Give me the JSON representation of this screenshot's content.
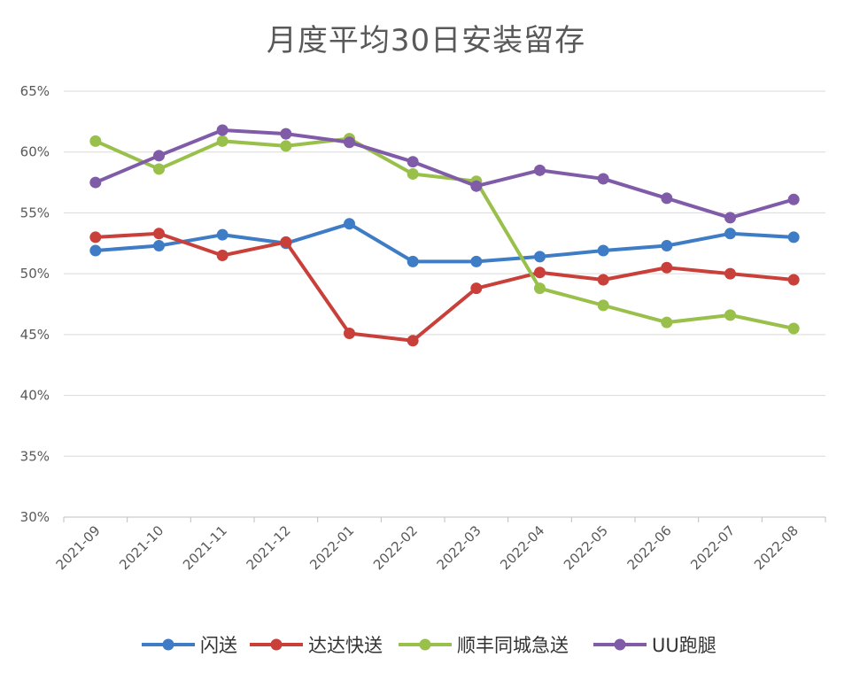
{
  "chart_data": {
    "type": "line",
    "title": "月度平均30日安装留存",
    "xlabel": "",
    "ylabel": "",
    "categories": [
      "2021-09",
      "2021-10",
      "2021-11",
      "2021-12",
      "2022-01",
      "2022-02",
      "2022-03",
      "2022-04",
      "2022-05",
      "2022-06",
      "2022-07",
      "2022-08"
    ],
    "ylim": [
      30,
      65
    ],
    "yticks": [
      30,
      35,
      40,
      45,
      50,
      55,
      60,
      65
    ],
    "ytick_labels": [
      "30%",
      "35%",
      "40%",
      "45%",
      "50%",
      "55%",
      "60%",
      "65%"
    ],
    "grid": "horizontal",
    "legend_position": "bottom",
    "series": [
      {
        "name": "闪送",
        "color": "#3e7cc6",
        "values": [
          51.9,
          52.3,
          53.2,
          52.5,
          54.1,
          51.0,
          51.0,
          51.4,
          51.9,
          52.3,
          53.3,
          53.0
        ]
      },
      {
        "name": "达达快送",
        "color": "#c9403a",
        "values": [
          53.0,
          53.3,
          51.5,
          52.6,
          45.1,
          44.5,
          48.8,
          50.1,
          49.5,
          50.5,
          50.0,
          49.5
        ]
      },
      {
        "name": "顺丰同城急送",
        "color": "#98c04a",
        "values": [
          60.9,
          58.6,
          60.9,
          60.5,
          61.1,
          58.2,
          57.6,
          48.8,
          47.4,
          46.0,
          46.6,
          45.5
        ]
      },
      {
        "name": "UU跑腿",
        "color": "#7f5ba8",
        "values": [
          57.5,
          59.7,
          61.8,
          61.5,
          60.8,
          59.2,
          57.2,
          58.5,
          57.8,
          56.2,
          54.6,
          56.1
        ]
      }
    ]
  }
}
